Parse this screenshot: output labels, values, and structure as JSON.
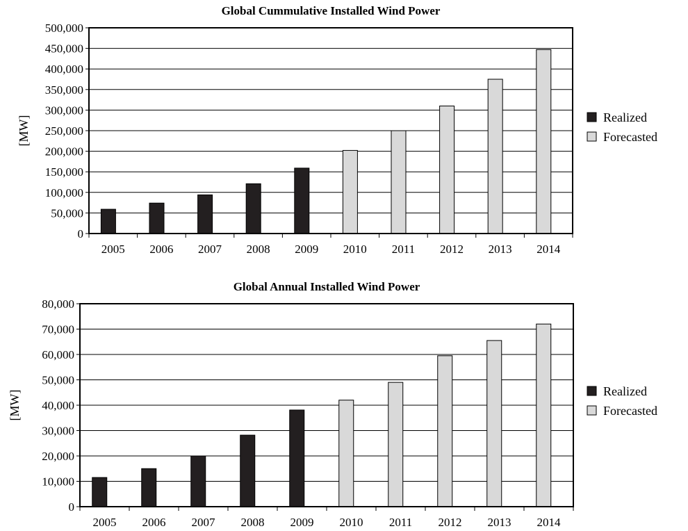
{
  "chart_data": [
    {
      "type": "bar",
      "title": "Global Cummulative Installed Wind Power",
      "ylabel": "[MW]",
      "xlabel": "",
      "categories": [
        "2005",
        "2006",
        "2007",
        "2008",
        "2009",
        "2010",
        "2011",
        "2012",
        "2013",
        "2014"
      ],
      "ylim": [
        0,
        500000
      ],
      "yticks": [
        0,
        50000,
        100000,
        150000,
        200000,
        250000,
        300000,
        350000,
        400000,
        450000,
        500000
      ],
      "ytick_labels": [
        "0",
        "50,000",
        "100,000",
        "150,000",
        "200,000",
        "250,000",
        "300,000",
        "350,000",
        "400,000",
        "450,000",
        "500,000"
      ],
      "grid": true,
      "legend_position": "right",
      "series": [
        {
          "name": "Realized",
          "color": "#231f20",
          "values": [
            59000,
            74000,
            94000,
            121000,
            159000,
            null,
            null,
            null,
            null,
            null
          ]
        },
        {
          "name": "Forecasted",
          "color": "#d9d9d9",
          "values": [
            null,
            null,
            null,
            null,
            null,
            202000,
            250000,
            310000,
            375000,
            447000
          ]
        }
      ]
    },
    {
      "type": "bar",
      "title": "Global Annual Installed Wind Power",
      "ylabel": "[MW]",
      "xlabel": "",
      "categories": [
        "2005",
        "2006",
        "2007",
        "2008",
        "2009",
        "2010",
        "2011",
        "2012",
        "2013",
        "2014"
      ],
      "ylim": [
        0,
        80000
      ],
      "yticks": [
        0,
        10000,
        20000,
        30000,
        40000,
        50000,
        60000,
        70000,
        80000
      ],
      "ytick_labels": [
        "0",
        "10,000",
        "20,000",
        "30,000",
        "40,000",
        "50,000",
        "60,000",
        "70,000",
        "80,000"
      ],
      "grid": true,
      "legend_position": "right",
      "series": [
        {
          "name": "Realized",
          "color": "#231f20",
          "values": [
            11500,
            15000,
            20000,
            28200,
            38100,
            null,
            null,
            null,
            null,
            null
          ]
        },
        {
          "name": "Forecasted",
          "color": "#d9d9d9",
          "values": [
            null,
            null,
            null,
            null,
            null,
            42000,
            49000,
            59500,
            65500,
            72000
          ]
        }
      ]
    }
  ]
}
